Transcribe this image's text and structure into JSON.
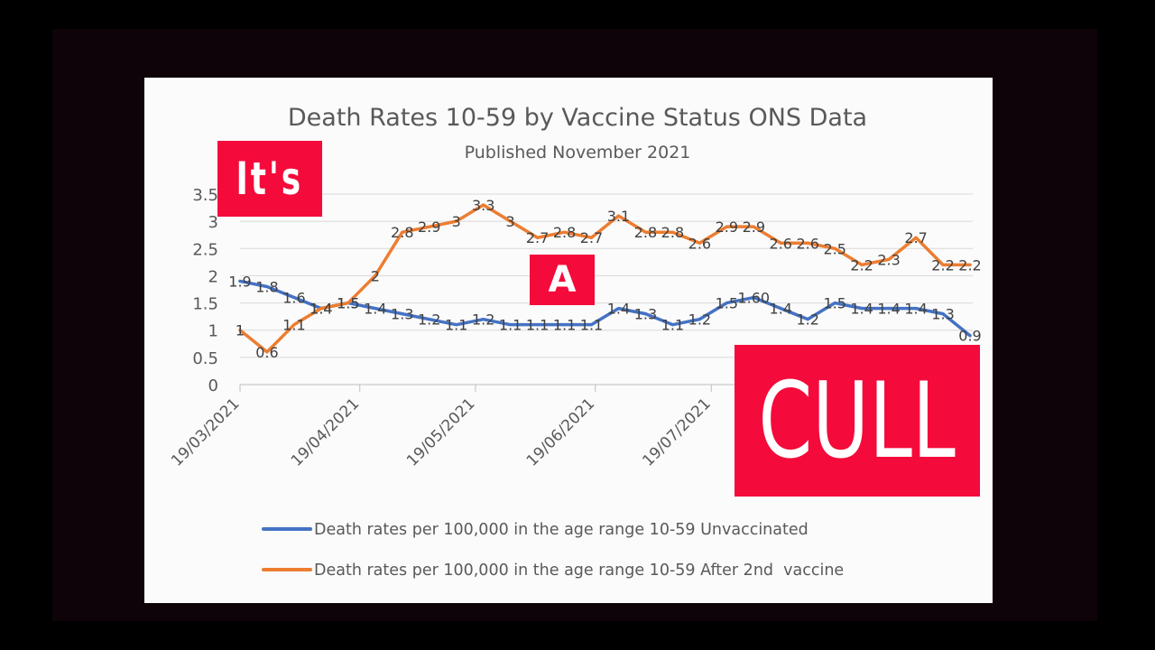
{
  "overlays": {
    "its": "It's",
    "a": "A",
    "cull": "CULL"
  },
  "colors": {
    "unvaccinated": "#4472c4",
    "after_2nd_vaccine": "#ed7d31",
    "overlay_red": "#f40b3b"
  },
  "chart_data": {
    "type": "line",
    "title": "Death Rates 10-59  by Vaccine Status ONS Data",
    "subtitle": "Published November 2021",
    "xlabel": "",
    "ylabel": "",
    "ylim": [
      0,
      3.5
    ],
    "yticks": [
      "0",
      "0.5",
      "1",
      "1.5",
      "2",
      "2.5",
      "3",
      "3.5"
    ],
    "x_tick_labels": [
      "19/03/2021",
      "19/04/2021",
      "19/05/2021",
      "19/06/2021",
      "19/07/2021"
    ],
    "x_tick_weeks": [
      0,
      4.43,
      8.71,
      13.14,
      17.43
    ],
    "weeks": [
      0,
      1,
      2,
      3,
      4,
      5,
      6,
      7,
      8,
      9,
      10,
      11,
      12,
      13,
      14,
      15,
      16,
      17,
      18,
      19,
      20,
      21,
      22,
      23,
      24,
      25,
      26,
      27
    ],
    "legend_position": "bottom",
    "grid": true,
    "series": [
      {
        "name": "Death rates per 100,000 in the age range 10-59 Unvaccinated",
        "values": [
          1.9,
          1.8,
          1.6,
          1.4,
          1.5,
          1.4,
          1.3,
          1.2,
          1.1,
          1.2,
          1.1,
          1.1,
          1.1,
          1.1,
          1.4,
          1.3,
          1.1,
          1.2,
          1.5,
          1.6,
          1.4,
          1.2,
          1.5,
          1.4,
          1.4,
          1.4,
          1.3,
          0.9
        ],
        "labels": [
          "1.9",
          "1.8",
          "1.6",
          "1.4",
          "1.5",
          "1.4",
          "1.3",
          "1.2",
          "1.1",
          "1.2",
          "1.1",
          "1.1",
          "1.1",
          "1.1",
          "1.4",
          "1.3",
          "1.1",
          "1.2",
          "1.5",
          "1.60",
          "1.4",
          "1.2",
          "1.5",
          "1.4",
          "1.4",
          "1.4",
          "1.3",
          "0.9"
        ]
      },
      {
        "name": "Death rates per 100,000 in the age range 10-59 After 2nd  vaccine",
        "values": [
          1,
          0.6,
          1.1,
          1.4,
          1.5,
          2,
          2.8,
          2.9,
          3,
          3.3,
          3,
          2.7,
          2.8,
          2.7,
          3.1,
          2.8,
          2.8,
          2.6,
          2.9,
          2.9,
          2.6,
          2.6,
          2.5,
          2.2,
          2.3,
          2.7,
          2.2,
          2.2
        ],
        "labels": [
          "1",
          "0.6",
          "1.1",
          "1.4",
          "1.5",
          "2",
          "2.8",
          "2.9",
          "3",
          "3.3",
          "3",
          "2.7",
          "2.8",
          "2.7",
          "3.1",
          "2.8",
          "2.8",
          "2.6",
          "2.9",
          "2.9",
          "2.6",
          "2.6",
          "2.5",
          "2.2",
          "2.3",
          "2.7",
          "2.2",
          "2.2"
        ]
      }
    ]
  }
}
